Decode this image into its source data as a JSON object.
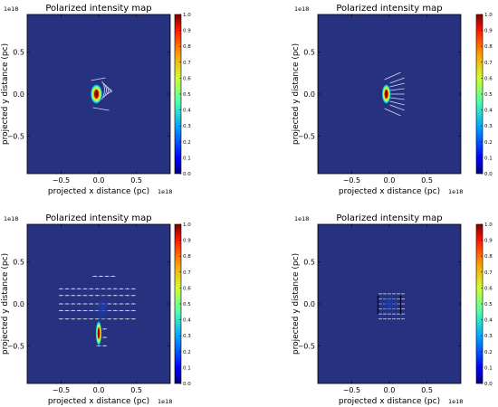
{
  "chart_data": [
    {
      "type": "heatmap",
      "title": "Polarized intensity map",
      "xlabel": "projected x distance (pc)",
      "ylabel": "projected y distance (pc)",
      "x_scale_label": "1e18",
      "y_scale_label": "1e18",
      "xlim": [
        -0.95,
        0.95
      ],
      "ylim": [
        -0.95,
        0.95
      ],
      "x_ticks": [
        -0.5,
        0.0,
        0.5
      ],
      "x_tick_labels": [
        "−0.5",
        "0.0",
        "0.5"
      ],
      "y_ticks": [
        0.5,
        0.0,
        -0.5
      ],
      "y_tick_labels": [
        "0.5",
        "0.0",
        "−0.5"
      ],
      "background_color": "#26317f",
      "colorbar": {
        "range": [
          0.0,
          1.0
        ],
        "ticks": [
          1.0,
          0.9,
          0.8,
          0.7,
          0.6,
          0.5,
          0.4,
          0.3,
          0.2,
          0.1,
          0.0
        ],
        "tick_labels": [
          "1.0",
          "0.9",
          "0.8",
          "0.7",
          "0.6",
          "0.5",
          "0.4",
          "0.3",
          "0.2",
          "0.1",
          "0.0"
        ],
        "colormap": "jet"
      },
      "emission": {
        "center": [
          -0.03,
          0.0
        ],
        "extent_x": 0.08,
        "extent_y": 0.12,
        "peak": 1.0
      },
      "vectors": "compact arcs near core"
    },
    {
      "type": "heatmap",
      "title": "Polarized intensity map",
      "xlabel": "projected x distance (pc)",
      "ylabel": "projected y distance (pc)",
      "x_scale_label": "1e18",
      "y_scale_label": "1e18",
      "xlim": [
        -0.95,
        0.95
      ],
      "ylim": [
        -0.95,
        0.95
      ],
      "x_ticks": [
        -0.5,
        0.0,
        0.5
      ],
      "x_tick_labels": [
        "−0.5",
        "0.0",
        "0.5"
      ],
      "y_ticks": [
        0.5,
        0.0,
        -0.5
      ],
      "y_tick_labels": [
        "0.5",
        "0.0",
        "−0.5"
      ],
      "background_color": "#26317f",
      "colorbar": {
        "range": [
          0.0,
          1.0
        ],
        "ticks": [
          1.0,
          0.9,
          0.8,
          0.7,
          0.6,
          0.5,
          0.4,
          0.3,
          0.2,
          0.1,
          0.0
        ],
        "tick_labels": [
          "1.0",
          "0.9",
          "0.8",
          "0.7",
          "0.6",
          "0.5",
          "0.4",
          "0.3",
          "0.2",
          "0.1",
          "0.0"
        ],
        "colormap": "jet"
      },
      "emission": {
        "center": [
          -0.04,
          0.0
        ],
        "extent_x": 0.06,
        "extent_y": 0.12,
        "peak": 1.0
      },
      "vectors": "diagonal streaks on right"
    },
    {
      "type": "heatmap",
      "title": "Polarized intensity map",
      "xlabel": "projected x distance (pc)",
      "ylabel": "projected y distance (pc)",
      "x_scale_label": "1e18",
      "y_scale_label": "1e18",
      "xlim": [
        -0.95,
        0.95
      ],
      "ylim": [
        -0.95,
        0.95
      ],
      "x_ticks": [
        -0.5,
        0.0,
        0.5
      ],
      "x_tick_labels": [
        "−0.5",
        "0.0",
        "0.5"
      ],
      "y_ticks": [
        0.5,
        0.0,
        -0.5
      ],
      "y_tick_labels": [
        "0.5",
        "0.0",
        "−0.5"
      ],
      "background_color": "#26317f",
      "colorbar": {
        "range": [
          0.0,
          1.0
        ],
        "ticks": [
          1.0,
          0.9,
          0.8,
          0.7,
          0.6,
          0.5,
          0.4,
          0.3,
          0.2,
          0.1,
          0.0
        ],
        "tick_labels": [
          "1.0",
          "0.9",
          "0.8",
          "0.7",
          "0.6",
          "0.5",
          "0.4",
          "0.3",
          "0.2",
          "0.1",
          "0.0"
        ],
        "colormap": "jet"
      },
      "emission": {
        "center": [
          0.0,
          -0.35
        ],
        "extent_x": 0.04,
        "extent_y": 0.15,
        "peak": 1.0
      },
      "vectors": "horizontal grid of vectors"
    },
    {
      "type": "heatmap",
      "title": "Polarized intensity map",
      "xlabel": "projected x distance (pc)",
      "ylabel": "projected y distance (pc)",
      "x_scale_label": "1e18",
      "y_scale_label": "1e18",
      "xlim": [
        -0.95,
        0.95
      ],
      "ylim": [
        -0.95,
        0.95
      ],
      "x_ticks": [
        -0.5,
        0.0,
        0.5
      ],
      "x_tick_labels": [
        "−0.5",
        "0.0",
        "0.5"
      ],
      "y_ticks": [
        0.5,
        0.0,
        -0.5
      ],
      "y_tick_labels": [
        "0.5",
        "0.0",
        "−0.5"
      ],
      "background_color": "#26317f",
      "colorbar": {
        "range": [
          0.0,
          1.0
        ],
        "ticks": [
          1.0,
          0.9,
          0.8,
          0.7,
          0.6,
          0.5,
          0.4,
          0.3,
          0.2,
          0.1,
          0.0
        ],
        "tick_labels": [
          "1.0",
          "0.9",
          "0.8",
          "0.7",
          "0.6",
          "0.5",
          "0.4",
          "0.3",
          "0.2",
          "0.1",
          "0.0"
        ],
        "colormap": "jet"
      },
      "emission": {
        "center": [
          0.0,
          0.0
        ],
        "extent_x": 0.18,
        "extent_y": 0.12,
        "peak": 0.25
      },
      "vectors": "small box of vectors"
    }
  ]
}
